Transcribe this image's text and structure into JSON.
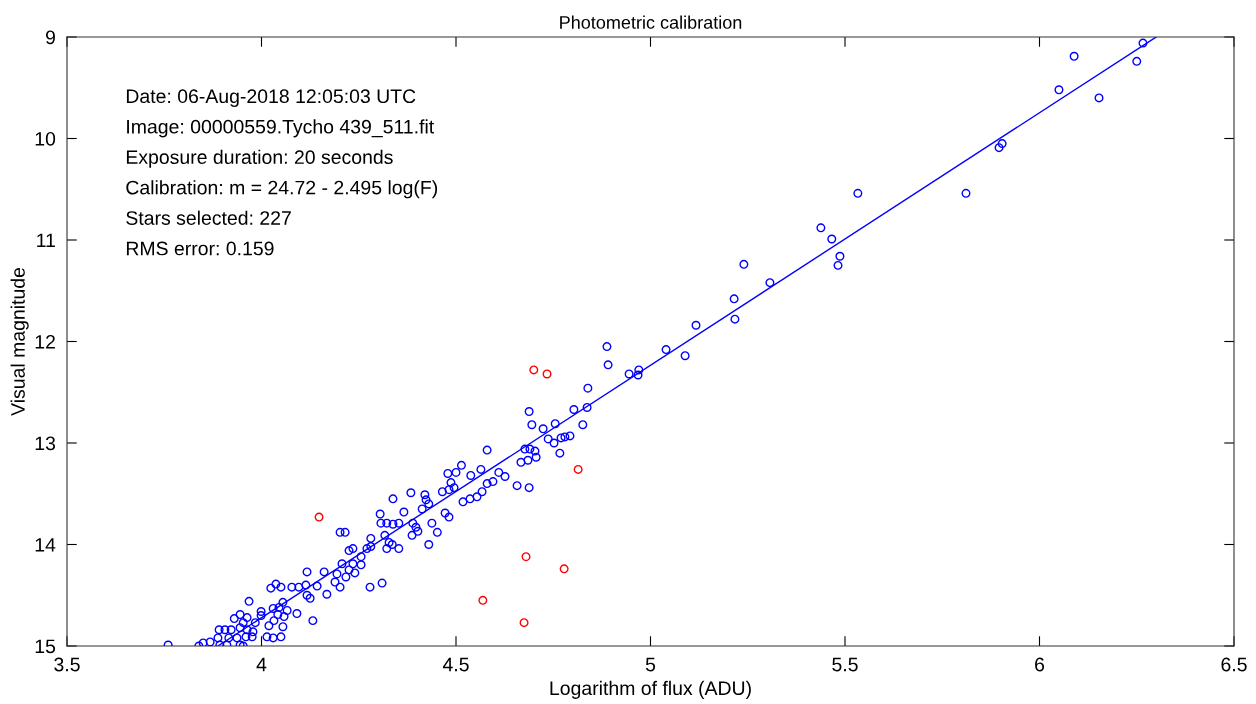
{
  "chart_data": {
    "type": "scatter",
    "title": "Photometric calibration",
    "xlabel": "Logarithm of flux (ADU)",
    "ylabel": "Visual magnitude",
    "xlim": [
      3.5,
      6.5
    ],
    "xticks": [
      3.5,
      4,
      4.5,
      5,
      5.5,
      6,
      6.5
    ],
    "ylim": [
      15,
      9
    ],
    "yticks": [
      9,
      10,
      11,
      12,
      13,
      14,
      15
    ],
    "grid": false,
    "legend": false,
    "marker": "circle",
    "annotations": [
      "Date: 06-Aug-2018 12:05:03 UTC",
      "Image: 00000559.Tycho 439_511.fit",
      "Exposure duration: 20 seconds",
      "Calibration: m = 24.72 - 2.495 log(F)",
      "Stars selected: 227",
      "RMS error: 0.159"
    ],
    "series": [
      {
        "color": "#0000ff",
        "x": [
          6.266,
          6.25,
          6.089,
          6.05,
          6.153,
          5.904,
          5.896,
          5.811,
          5.533,
          5.438,
          5.466,
          5.487,
          5.24,
          5.482,
          5.307,
          5.215,
          5.217,
          5.117,
          5.04,
          5.089,
          4.888,
          4.891,
          4.945,
          4.97,
          4.968,
          4.839,
          4.803,
          4.837,
          4.826,
          4.793,
          4.78,
          4.77,
          4.767,
          4.755,
          4.724,
          4.688,
          4.695,
          4.737,
          4.752,
          4.677,
          4.69,
          4.703,
          4.706,
          4.685,
          4.667,
          4.688,
          4.657,
          4.58,
          4.61,
          4.626,
          4.595,
          4.58,
          4.567,
          4.554,
          4.536,
          4.518,
          4.564,
          4.538,
          4.514,
          4.5,
          4.479,
          4.487,
          4.482,
          4.495,
          4.465,
          4.472,
          4.482,
          4.42,
          4.423,
          4.43,
          4.413,
          4.384,
          4.366,
          4.338,
          4.305,
          4.307,
          4.322,
          4.338,
          4.353,
          4.389,
          4.397,
          4.387,
          4.402,
          4.438,
          4.452,
          4.43,
          4.353,
          4.317,
          4.328,
          4.336,
          4.322,
          4.281,
          4.281,
          4.271,
          4.256,
          4.256,
          4.235,
          4.225,
          4.202,
          4.215,
          4.207,
          4.235,
          4.225,
          4.194,
          4.217,
          4.24,
          4.189,
          4.202,
          4.279,
          4.31,
          3.968,
          4.117,
          4.161,
          4.037,
          4.024,
          4.05,
          4.078,
          4.096,
          4.114,
          4.143,
          4.168,
          4.117,
          4.125,
          4.091,
          4.132,
          4.055,
          4.045,
          4.066,
          4.03,
          4.042,
          4.058,
          4.032,
          4.055,
          4.05,
          4.03,
          4.014,
          3.999,
          3.999,
          3.984,
          4.019,
          3.93,
          3.945,
          3.963,
          3.953,
          3.945,
          3.891,
          3.906,
          3.922,
          3.963,
          3.978,
          3.888,
          3.916,
          3.937,
          3.96,
          3.976,
          3.893,
          3.911,
          3.945,
          3.953,
          3.85,
          3.868,
          3.839,
          3.76
        ],
        "values": [
          9.06,
          9.24,
          9.19,
          9.52,
          9.6,
          10.05,
          10.09,
          10.54,
          10.54,
          10.88,
          10.99,
          11.16,
          11.24,
          11.25,
          11.42,
          11.58,
          11.78,
          11.84,
          12.08,
          12.14,
          12.05,
          12.23,
          12.32,
          12.28,
          12.33,
          12.46,
          12.67,
          12.65,
          12.82,
          12.93,
          12.94,
          12.95,
          13.1,
          12.81,
          12.86,
          12.69,
          12.82,
          12.96,
          13.0,
          13.06,
          13.06,
          13.08,
          13.14,
          13.17,
          13.19,
          13.44,
          13.42,
          13.07,
          13.29,
          13.33,
          13.38,
          13.4,
          13.48,
          13.53,
          13.55,
          13.58,
          13.26,
          13.32,
          13.22,
          13.29,
          13.3,
          13.39,
          13.46,
          13.44,
          13.48,
          13.69,
          13.73,
          13.51,
          13.56,
          13.6,
          13.65,
          13.49,
          13.68,
          13.55,
          13.7,
          13.79,
          13.79,
          13.8,
          13.79,
          13.79,
          13.83,
          13.91,
          13.87,
          13.79,
          13.88,
          14.0,
          14.04,
          13.91,
          13.98,
          14.0,
          14.04,
          13.94,
          14.02,
          14.04,
          14.12,
          14.2,
          14.04,
          14.06,
          13.88,
          13.88,
          14.19,
          14.19,
          14.25,
          14.29,
          14.32,
          14.28,
          14.37,
          14.42,
          14.42,
          14.38,
          14.56,
          14.27,
          14.27,
          14.39,
          14.43,
          14.42,
          14.42,
          14.42,
          14.4,
          14.41,
          14.49,
          14.5,
          14.53,
          14.68,
          14.75,
          14.57,
          14.62,
          14.65,
          14.63,
          14.69,
          14.71,
          14.75,
          14.81,
          14.91,
          14.92,
          14.91,
          14.66,
          14.7,
          14.77,
          14.8,
          14.73,
          14.69,
          14.72,
          14.77,
          14.82,
          14.84,
          14.84,
          14.84,
          14.84,
          14.86,
          14.92,
          14.92,
          14.92,
          14.91,
          14.91,
          14.99,
          14.99,
          14.99,
          15.0,
          14.97,
          14.96,
          15.0,
          14.99
        ]
      },
      {
        "color": "#ff0000",
        "x": [
          4.148,
          4.7,
          4.734,
          4.814,
          4.68,
          4.778,
          4.569,
          4.675
        ],
        "values": [
          13.73,
          12.28,
          12.32,
          13.26,
          14.12,
          14.24,
          14.55,
          14.77
        ]
      },
      {
        "type": "line",
        "color": "#0000ff",
        "marker": "none",
        "x": [
          3.888,
          6.3
        ],
        "values": [
          15,
          9
        ]
      }
    ]
  }
}
